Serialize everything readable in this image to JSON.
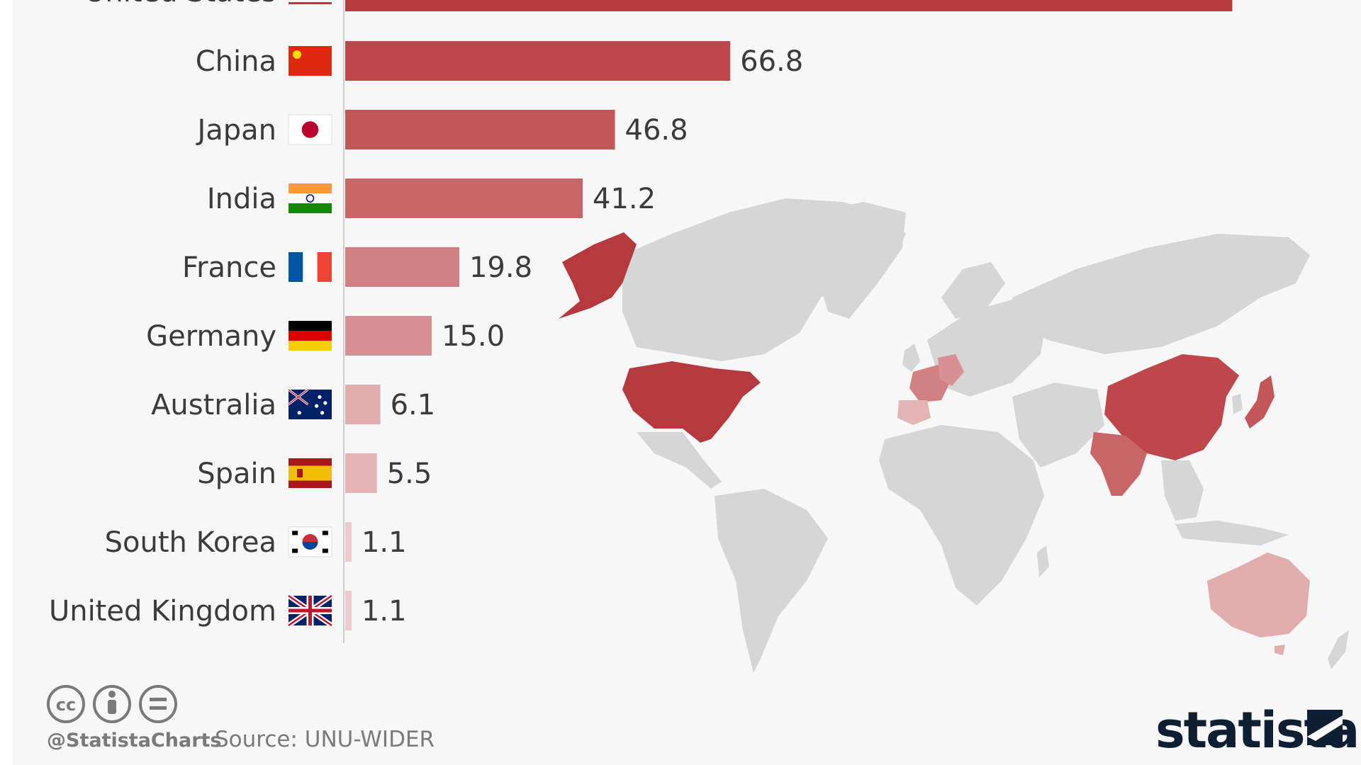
{
  "chart_data": {
    "type": "bar",
    "orientation": "horizontal",
    "categories": [
      "United States",
      "China",
      "Japan",
      "India",
      "France",
      "Germany",
      "Australia",
      "Spain",
      "South Korea",
      "United Kingdom"
    ],
    "values": [
      153.9,
      66.8,
      46.8,
      41.2,
      19.8,
      15.0,
      6.1,
      5.5,
      1.1,
      1.1
    ],
    "value_labels": [
      "",
      "66.8",
      "46.8",
      "41.2",
      "19.8",
      "15.0",
      "6.1",
      "5.5",
      "1.1",
      "1.1"
    ],
    "xlim": [
      0,
      160
    ],
    "grid": false,
    "legend": "none",
    "colors": [
      "#b5393d",
      "#bd474b",
      "#c3575a",
      "#c86568",
      "#d28083",
      "#d89193",
      "#e2adaf",
      "#e4b3b5",
      "#ecc9ca",
      "#ecc9ca"
    ],
    "flags": [
      "us-flag",
      "cn-flag",
      "jp-flag",
      "in-flag",
      "fr-flag",
      "de-flag",
      "au-flag",
      "es-flag",
      "kr-flag",
      "gb-flag"
    ]
  },
  "map": {
    "base_color": "#d6d6d6",
    "highlight_colors": {
      "United States": "#b5393d",
      "China": "#bd474b",
      "Japan": "#c3575a",
      "India": "#c86568",
      "France": "#d28083",
      "Germany": "#d89193",
      "Australia": "#e2adaf",
      "Spain": "#e4b3b5"
    }
  },
  "footer": {
    "handle": "@StatistaCharts",
    "source": "Source: UNU-WIDER",
    "brand": "statista"
  },
  "license_icons": [
    "cc-icon",
    "by-icon",
    "nd-icon"
  ]
}
